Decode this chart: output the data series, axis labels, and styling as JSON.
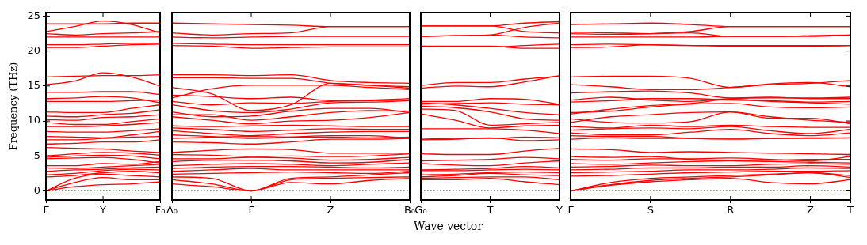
{
  "chart_data": [
    {
      "type": "line",
      "ylabel": "Frequency (THz)",
      "categories": [
        "Γ",
        null,
        "Y",
        null,
        "F₀"
      ],
      "ylim": [
        -1.3,
        25.5
      ],
      "yticks": [
        0,
        5,
        10,
        15,
        20,
        25
      ],
      "grid": false,
      "legend": false,
      "ref_lines": [
        {
          "axis": "y",
          "value": 0,
          "color": "#8080ff",
          "line_style": "dotted"
        }
      ],
      "series": [
        {
          "color": "#ff0000",
          "values": [
            0,
            0.6,
            0.9,
            1.0,
            1.3
          ]
        },
        {
          "color": "#ff0000",
          "values": [
            0,
            1.2,
            1.9,
            1.6,
            1.6
          ]
        },
        {
          "color": "#ff0000",
          "values": [
            0,
            1.8,
            2.4,
            2.2,
            2.0
          ]
        },
        {
          "color": "#ff0000",
          "values": [
            2.0,
            2.2,
            2.6,
            2.8,
            2.6
          ]
        },
        {
          "color": "#ff0000",
          "values": [
            2.3,
            2.5,
            2.9,
            3.1,
            3.0
          ]
        },
        {
          "color": "#ff0000",
          "values": [
            2.8,
            3.0,
            3.1,
            3.3,
            3.4
          ]
        },
        {
          "color": "#ff0000",
          "values": [
            3.3,
            3.2,
            3.4,
            3.6,
            3.8
          ]
        },
        {
          "color": "#ff0000",
          "values": [
            3.6,
            3.6,
            3.9,
            3.8,
            4.2
          ]
        },
        {
          "color": "#ff0000",
          "values": [
            4.6,
            4.7,
            4.8,
            4.5,
            4.0
          ]
        },
        {
          "color": "#ff0000",
          "values": [
            4.8,
            5.0,
            5.1,
            5.0,
            4.6
          ]
        },
        {
          "color": "#ff0000",
          "values": [
            5.0,
            5.3,
            5.5,
            5.4,
            5.1
          ]
        },
        {
          "color": "#ff0000",
          "values": [
            6.2,
            6.1,
            6.0,
            5.7,
            5.5
          ]
        },
        {
          "color": "#ff0000",
          "values": [
            6.7,
            6.8,
            7.0,
            7.0,
            7.3
          ]
        },
        {
          "color": "#ff0000",
          "values": [
            7.3,
            7.3,
            7.5,
            7.7,
            7.8
          ]
        },
        {
          "color": "#ff0000",
          "values": [
            7.8,
            7.7,
            7.6,
            8.0,
            8.5
          ]
        },
        {
          "color": "#ff0000",
          "values": [
            8.5,
            8.4,
            8.4,
            8.6,
            8.9
          ]
        },
        {
          "color": "#ff0000",
          "values": [
            9.2,
            9.2,
            9.3,
            9.5,
            9.8
          ]
        },
        {
          "color": "#ff0000",
          "values": [
            9.8,
            9.5,
            9.5,
            9.9,
            10.3
          ]
        },
        {
          "color": "#ff0000",
          "values": [
            10.2,
            10.1,
            10.5,
            10.6,
            10.9
          ]
        },
        {
          "color": "#ff0000",
          "values": [
            10.7,
            10.6,
            10.9,
            11.1,
            11.6
          ]
        },
        {
          "color": "#ff0000",
          "values": [
            11.3,
            11.2,
            11.2,
            11.8,
            12.3
          ]
        },
        {
          "color": "#ff0000",
          "values": [
            12.8,
            12.8,
            12.8,
            12.9,
            13.0
          ]
        },
        {
          "color": "#ff0000",
          "values": [
            13.2,
            13.3,
            13.5,
            13.3,
            12.6
          ]
        },
        {
          "color": "#ff0000",
          "values": [
            14.1,
            14.1,
            14.2,
            14.2,
            13.8
          ]
        },
        {
          "color": "#ff0000",
          "values": [
            15.2,
            15.7,
            16.9,
            16.3,
            15.0
          ]
        },
        {
          "color": "#ff0000",
          "values": [
            16.3,
            16.4,
            16.5,
            16.5,
            16.6
          ]
        },
        {
          "color": "#ff0000",
          "values": [
            20.5,
            20.5,
            20.7,
            20.9,
            21.0
          ]
        },
        {
          "color": "#ff0000",
          "values": [
            20.9,
            20.9,
            21.0,
            21.1,
            21.1
          ]
        },
        {
          "color": "#ff0000",
          "values": [
            22.0,
            22.0,
            22.0,
            22.0,
            22.0
          ]
        },
        {
          "color": "#ff0000",
          "values": [
            22.5,
            22.3,
            22.5,
            22.6,
            22.8
          ]
        },
        {
          "color": "#ff0000",
          "values": [
            22.8,
            23.5,
            24.3,
            23.8,
            22.6
          ]
        },
        {
          "color": "#ff0000",
          "values": [
            23.9,
            23.9,
            23.9,
            24.0,
            24.0
          ]
        }
      ],
      "tick_labels": true
    },
    {
      "type": "line",
      "categories": [
        "Δ₀",
        null,
        "Γ",
        null,
        "Z",
        null,
        "B₀"
      ],
      "ylim": [
        -1.3,
        25.5
      ],
      "grid": false,
      "legend": false,
      "tick_labels": "x",
      "ref_lines": [
        {
          "axis": "y",
          "value": 0,
          "color": "#8080ff",
          "line_style": "dotted"
        }
      ],
      "series": [
        {
          "color": "#ff0000",
          "values": [
            1.0,
            0.6,
            0,
            1.2,
            1.0,
            1.5,
            1.8
          ]
        },
        {
          "color": "#ff0000",
          "values": [
            1.6,
            1.0,
            0,
            1.6,
            1.8,
            1.9,
            2.0
          ]
        },
        {
          "color": "#ff0000",
          "values": [
            2.0,
            1.8,
            0,
            1.8,
            2.0,
            2.3,
            2.6
          ]
        },
        {
          "color": "#ff0000",
          "values": [
            2.4,
            2.5,
            2.6,
            2.7,
            2.6,
            2.5,
            2.8
          ]
        },
        {
          "color": "#ff0000",
          "values": [
            2.8,
            3.0,
            3.2,
            3.0,
            3.0,
            3.0,
            3.0
          ]
        },
        {
          "color": "#ff0000",
          "values": [
            3.2,
            3.4,
            3.5,
            3.5,
            3.4,
            3.3,
            3.4
          ]
        },
        {
          "color": "#ff0000",
          "values": [
            3.6,
            3.8,
            3.9,
            3.8,
            3.6,
            3.8,
            4.0
          ]
        },
        {
          "color": "#ff0000",
          "values": [
            4.2,
            4.4,
            4.4,
            4.3,
            4.0,
            4.1,
            4.5
          ]
        },
        {
          "color": "#ff0000",
          "values": [
            4.6,
            4.6,
            4.8,
            4.7,
            4.4,
            4.5,
            4.8
          ]
        },
        {
          "color": "#ff0000",
          "values": [
            5.2,
            5.1,
            4.9,
            5.0,
            4.9,
            5.0,
            5.3
          ]
        },
        {
          "color": "#ff0000",
          "values": [
            5.5,
            5.8,
            6.0,
            5.9,
            5.4,
            5.4,
            5.4
          ]
        },
        {
          "color": "#ff0000",
          "values": [
            7.0,
            6.9,
            6.7,
            7.0,
            7.4,
            7.4,
            7.5
          ]
        },
        {
          "color": "#ff0000",
          "values": [
            7.5,
            7.7,
            7.8,
            7.7,
            7.7,
            7.6,
            7.7
          ]
        },
        {
          "color": "#ff0000",
          "values": [
            8.0,
            7.8,
            7.5,
            7.7,
            7.9,
            7.9,
            7.5
          ]
        },
        {
          "color": "#ff0000",
          "values": [
            8.6,
            8.2,
            7.9,
            8.2,
            8.4,
            8.5,
            8.5
          ]
        },
        {
          "color": "#ff0000",
          "values": [
            9.3,
            9.2,
            9.3,
            9.4,
            9.3,
            9.2,
            9.2
          ]
        },
        {
          "color": "#ff0000",
          "values": [
            9.0,
            8.8,
            8.5,
            8.7,
            8.9,
            8.8,
            8.8
          ]
        },
        {
          "color": "#ff0000",
          "values": [
            10.6,
            10.1,
            9.6,
            10.0,
            10.1,
            10.5,
            11.2
          ]
        },
        {
          "color": "#ff0000",
          "values": [
            10.9,
            10.9,
            10.1,
            10.6,
            11.2,
            11.5,
            11.4
          ]
        },
        {
          "color": "#ff0000",
          "values": [
            11.3,
            10.6,
            10.7,
            11.4,
            11.8,
            11.8,
            11.2
          ]
        },
        {
          "color": "#ff0000",
          "values": [
            12.3,
            11.5,
            11.2,
            11.7,
            12.6,
            12.7,
            12.9
          ]
        },
        {
          "color": "#ff0000",
          "values": [
            12.8,
            12.3,
            12.6,
            12.5,
            12.8,
            12.9,
            13.0
          ]
        },
        {
          "color": "#ff0000",
          "values": [
            13.7,
            13.5,
            13.2,
            13.4,
            12.9,
            13.0,
            13.2
          ]
        },
        {
          "color": "#ff0000",
          "values": [
            14.8,
            13.9,
            11.5,
            12.3,
            15.4,
            15.1,
            14.7
          ]
        },
        {
          "color": "#ff0000",
          "values": [
            13.3,
            14.6,
            15.1,
            15.1,
            15.1,
            14.8,
            14.5
          ]
        },
        {
          "color": "#ff0000",
          "values": [
            16.2,
            16.2,
            16.1,
            16.1,
            15.4,
            15.1,
            14.9
          ]
        },
        {
          "color": "#ff0000",
          "values": [
            16.6,
            16.6,
            16.5,
            16.6,
            15.8,
            15.5,
            15.4
          ]
        },
        {
          "color": "#ff0000",
          "values": [
            20.8,
            20.7,
            20.4,
            20.5,
            20.6,
            20.6,
            20.6
          ]
        },
        {
          "color": "#ff0000",
          "values": [
            21.1,
            21.0,
            20.9,
            20.9,
            20.9,
            20.9,
            20.9
          ]
        },
        {
          "color": "#ff0000",
          "values": [
            22.0,
            21.9,
            22.0,
            22.1,
            22.1,
            22.1,
            22.1
          ]
        },
        {
          "color": "#ff0000",
          "values": [
            22.6,
            22.3,
            22.5,
            22.6,
            23.5,
            23.5,
            23.5
          ]
        },
        {
          "color": "#ff0000",
          "values": [
            24.0,
            23.9,
            23.8,
            23.7,
            23.5,
            23.5,
            23.5
          ]
        }
      ]
    },
    {
      "type": "line",
      "xlabel": "Wave vector",
      "categories": [
        "G₀",
        null,
        "T",
        null,
        "Y"
      ],
      "ylim": [
        -1.3,
        25.5
      ],
      "grid": false,
      "legend": false,
      "tick_labels": "x",
      "ref_lines": [
        {
          "axis": "y",
          "value": 0,
          "color": "#8080ff",
          "line_style": "dotted"
        }
      ],
      "series": [
        {
          "color": "#ff0000",
          "values": [
            1.6,
            1.6,
            1.8,
            1.3,
            0.9
          ]
        },
        {
          "color": "#ff0000",
          "values": [
            1.8,
            1.9,
            2.0,
            2.0,
            1.6
          ]
        },
        {
          "color": "#ff0000",
          "values": [
            2.0,
            2.2,
            2.5,
            2.3,
            2.2
          ]
        },
        {
          "color": "#ff0000",
          "values": [
            2.3,
            2.4,
            2.6,
            2.7,
            2.6
          ]
        },
        {
          "color": "#ff0000",
          "values": [
            2.9,
            2.9,
            3.0,
            3.1,
            3.0
          ]
        },
        {
          "color": "#ff0000",
          "values": [
            3.0,
            3.1,
            3.2,
            3.5,
            3.3
          ]
        },
        {
          "color": "#ff0000",
          "values": [
            3.9,
            3.7,
            3.6,
            4.0,
            4.3
          ]
        },
        {
          "color": "#ff0000",
          "values": [
            4.3,
            4.4,
            4.5,
            4.8,
            4.6
          ]
        },
        {
          "color": "#ff0000",
          "values": [
            5.3,
            5.2,
            5.2,
            5.7,
            6.1
          ]
        },
        {
          "color": "#ff0000",
          "values": [
            7.3,
            7.4,
            7.6,
            7.2,
            7.3
          ]
        },
        {
          "color": "#ff0000",
          "values": [
            7.4,
            7.5,
            7.5,
            7.7,
            7.6
          ]
        },
        {
          "color": "#ff0000",
          "values": [
            8.9,
            8.9,
            8.9,
            8.7,
            8.2
          ]
        },
        {
          "color": "#ff0000",
          "values": [
            11.0,
            10.1,
            9.0,
            9.3,
            9.4
          ]
        },
        {
          "color": "#ff0000",
          "values": [
            11.7,
            11.5,
            9.4,
            9.6,
            9.8
          ]
        },
        {
          "color": "#ff0000",
          "values": [
            12.1,
            11.9,
            11.3,
            10.3,
            10.1
          ]
        },
        {
          "color": "#ff0000",
          "values": [
            12.6,
            12.3,
            11.8,
            11.2,
            10.9
          ]
        },
        {
          "color": "#ff0000",
          "values": [
            12.4,
            12.5,
            12.6,
            12.4,
            12.3
          ]
        },
        {
          "color": "#ff0000",
          "values": [
            12.8,
            12.8,
            13.2,
            13.1,
            12.4
          ]
        },
        {
          "color": "#ff0000",
          "values": [
            15.1,
            15.5,
            15.5,
            16.0,
            16.4
          ]
        },
        {
          "color": "#ff0000",
          "values": [
            14.7,
            15.0,
            14.9,
            15.6,
            16.5
          ]
        },
        {
          "color": "#ff0000",
          "values": [
            20.7,
            20.6,
            20.6,
            20.8,
            21.0
          ]
        },
        {
          "color": "#ff0000",
          "values": [
            20.7,
            20.7,
            20.7,
            20.4,
            20.4
          ]
        },
        {
          "color": "#ff0000",
          "values": [
            22.1,
            22.2,
            22.3,
            22.0,
            21.9
          ]
        },
        {
          "color": "#ff0000",
          "values": [
            22.1,
            22.2,
            22.3,
            23.4,
            24.0
          ]
        },
        {
          "color": "#ff0000",
          "values": [
            23.6,
            23.6,
            23.6,
            22.8,
            22.6
          ]
        },
        {
          "color": "#ff0000",
          "values": [
            23.6,
            23.6,
            23.6,
            24.0,
            24.2
          ]
        }
      ]
    },
    {
      "type": "line",
      "categories": [
        "Γ",
        null,
        "S",
        null,
        "R",
        null,
        "Z",
        "T"
      ],
      "ylim": [
        -1.3,
        25.5
      ],
      "yticks": [
        {
          "value": 0,
          "label": null
        },
        {
          "value": 5,
          "label": null
        },
        {
          "value": 10,
          "label": null
        },
        {
          "value": 15,
          "label": null
        },
        {
          "value": 20,
          "label": null
        },
        {
          "value": 25,
          "label": null
        }
      ],
      "grid": false,
      "legend": false,
      "tick_labels": "x",
      "ref_lines": [
        {
          "axis": "y",
          "value": 0,
          "color": "#8080ff",
          "line_style": "dotted"
        }
      ],
      "series": [
        {
          "color": "#ff0000",
          "values": [
            0,
            0.8,
            1.3,
            1.6,
            1.8,
            1.2,
            1.0,
            1.6
          ]
        },
        {
          "color": "#ff0000",
          "values": [
            0,
            0.9,
            1.5,
            1.8,
            2.0,
            2.3,
            2.6,
            1.9
          ]
        },
        {
          "color": "#ff0000",
          "values": [
            0,
            1.2,
            1.8,
            2.0,
            2.2,
            2.4,
            2.6,
            2.2
          ]
        },
        {
          "color": "#ff0000",
          "values": [
            2.1,
            2.2,
            2.4,
            2.6,
            2.7,
            2.8,
            2.8,
            2.9
          ]
        },
        {
          "color": "#ff0000",
          "values": [
            2.6,
            2.7,
            2.8,
            3.0,
            3.0,
            3.1,
            3.3,
            3.2
          ]
        },
        {
          "color": "#ff0000",
          "values": [
            3.0,
            3.1,
            3.3,
            3.3,
            3.4,
            3.4,
            3.6,
            3.4
          ]
        },
        {
          "color": "#ff0000",
          "values": [
            3.4,
            3.5,
            3.7,
            3.6,
            3.6,
            3.8,
            3.9,
            3.8
          ]
        },
        {
          "color": "#ff0000",
          "values": [
            3.9,
            3.8,
            4.0,
            4.2,
            4.3,
            4.2,
            4.1,
            4.0
          ]
        },
        {
          "color": "#ff0000",
          "values": [
            4.5,
            4.4,
            4.6,
            4.6,
            4.7,
            4.5,
            4.3,
            4.9
          ]
        },
        {
          "color": "#ff0000",
          "values": [
            4.9,
            4.8,
            4.9,
            4.5,
            4.4,
            4.4,
            4.5,
            4.5
          ]
        },
        {
          "color": "#ff0000",
          "values": [
            6.0,
            5.9,
            5.5,
            5.6,
            5.5,
            5.4,
            5.3,
            5.2
          ]
        },
        {
          "color": "#ff0000",
          "values": [
            7.4,
            7.6,
            7.5,
            7.5,
            7.5,
            7.5,
            7.5,
            7.6
          ]
        },
        {
          "color": "#ff0000",
          "values": [
            7.9,
            7.8,
            7.8,
            7.5,
            7.4,
            7.5,
            7.6,
            7.6
          ]
        },
        {
          "color": "#ff0000",
          "values": [
            8.3,
            8.0,
            8.0,
            8.4,
            8.8,
            8.2,
            7.9,
            8.3
          ]
        },
        {
          "color": "#ff0000",
          "values": [
            8.7,
            8.9,
            9.0,
            8.9,
            9.2,
            8.6,
            8.2,
            8.8
          ]
        },
        {
          "color": "#ff0000",
          "values": [
            9.2,
            9.0,
            9.4,
            9.2,
            9.4,
            9.2,
            9.1,
            9.1
          ]
        },
        {
          "color": "#ff0000",
          "values": [
            10.3,
            9.8,
            9.7,
            9.9,
            11.3,
            10.6,
            10.1,
            9.8
          ]
        },
        {
          "color": "#ff0000",
          "values": [
            9.8,
            10.6,
            10.9,
            11.2,
            11.3,
            10.4,
            10.4,
            9.6
          ]
        },
        {
          "color": "#ff0000",
          "values": [
            11.2,
            11.4,
            12.0,
            12.4,
            12.5,
            12.0,
            11.9,
            12.0
          ]
        },
        {
          "color": "#ff0000",
          "values": [
            11.0,
            11.7,
            12.2,
            12.5,
            13.1,
            12.8,
            12.6,
            12.4
          ]
        },
        {
          "color": "#ff0000",
          "values": [
            12.7,
            12.9,
            13.2,
            13.2,
            13.0,
            12.9,
            12.7,
            12.8
          ]
        },
        {
          "color": "#ff0000",
          "values": [
            13.0,
            13.4,
            13.0,
            12.8,
            13.2,
            13.3,
            13.3,
            13.4
          ]
        },
        {
          "color": "#ff0000",
          "values": [
            14.0,
            14.2,
            14.3,
            14.0,
            13.3,
            13.4,
            13.2,
            13.2
          ]
        },
        {
          "color": "#ff0000",
          "values": [
            15.2,
            14.9,
            14.5,
            14.5,
            14.8,
            15.2,
            15.4,
            15.8
          ]
        },
        {
          "color": "#ff0000",
          "values": [
            16.3,
            16.4,
            16.4,
            16.1,
            14.8,
            15.3,
            15.5,
            14.9
          ]
        },
        {
          "color": "#ff0000",
          "values": [
            20.5,
            20.6,
            20.9,
            20.8,
            20.7,
            20.7,
            20.7,
            20.6
          ]
        },
        {
          "color": "#ff0000",
          "values": [
            20.9,
            21.0,
            20.9,
            20.8,
            20.8,
            20.8,
            20.8,
            20.8
          ]
        },
        {
          "color": "#ff0000",
          "values": [
            22.0,
            22.0,
            22.0,
            22.0,
            22.1,
            22.1,
            22.1,
            22.3
          ]
        },
        {
          "color": "#ff0000",
          "values": [
            22.5,
            22.4,
            22.5,
            22.8,
            23.5,
            23.5,
            23.5,
            23.5
          ]
        },
        {
          "color": "#ff0000",
          "values": [
            22.7,
            22.6,
            22.5,
            22.6,
            22.1,
            22.1,
            22.2,
            22.3
          ]
        },
        {
          "color": "#ff0000",
          "values": [
            23.8,
            23.9,
            24.0,
            23.8,
            23.5,
            23.5,
            23.5,
            23.5
          ]
        }
      ]
    }
  ]
}
